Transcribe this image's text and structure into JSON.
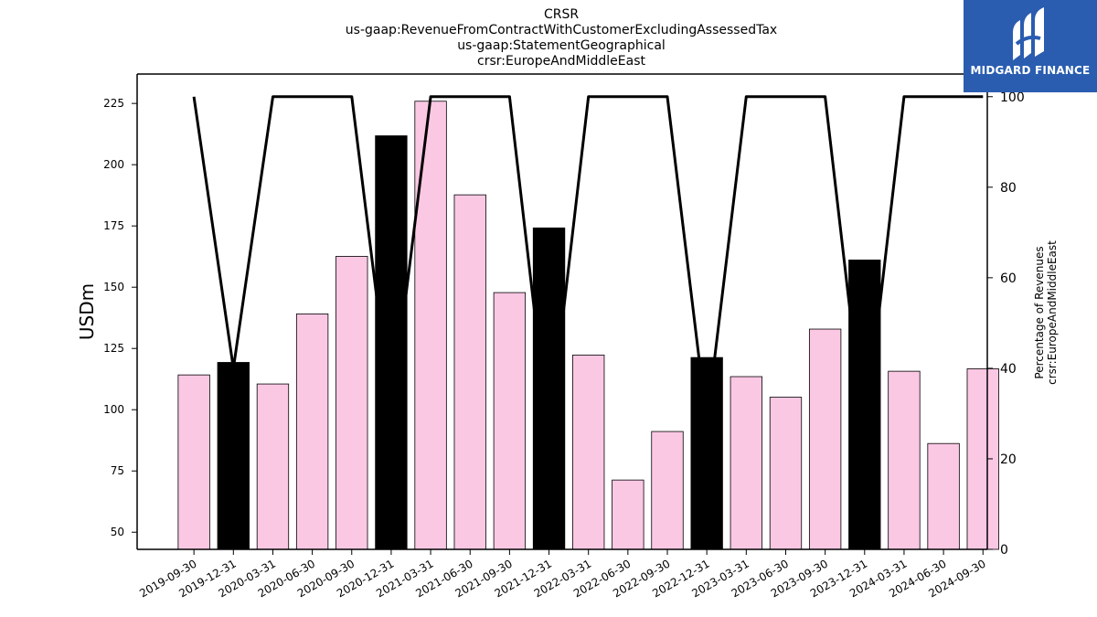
{
  "logo": {
    "text": "MIDGARD FINANCE",
    "bg_color": "#2a5db0"
  },
  "chart_data": {
    "type": "bar",
    "title_lines": [
      "CRSR",
      "us-gaap:RevenueFromContractWithCustomerExcludingAssessedTax",
      "us-gaap:StatementGeographical",
      "crsr:EuropeAndMiddleEast"
    ],
    "ylabel": "USDm",
    "y2label_lines": [
      "Percentage of Revenues",
      "crsr:EuropeAndMiddleEast"
    ],
    "ylim": [
      43,
      237
    ],
    "yticks": [
      50,
      75,
      100,
      125,
      150,
      175,
      200,
      225
    ],
    "y2lim": [
      0,
      105
    ],
    "y2ticks": [
      0,
      20,
      40,
      60,
      80,
      100
    ],
    "categories": [
      "2019-09-30",
      "2019-12-31",
      "2020-03-31",
      "2020-06-30",
      "2020-09-30",
      "2020-12-31",
      "2021-03-31",
      "2021-06-30",
      "2021-09-30",
      "2021-12-31",
      "2022-03-31",
      "2022-06-30",
      "2022-09-30",
      "2022-12-31",
      "2023-03-31",
      "2023-06-30",
      "2023-09-30",
      "2023-12-31",
      "2024-03-31",
      "2024-06-30",
      "2024-09-30"
    ],
    "series": [
      {
        "type": "bar",
        "values": [
          114.2,
          119.3,
          110.5,
          139.1,
          162.6,
          211.8,
          225.9,
          187.7,
          147.8,
          174.2,
          122.3,
          71.3,
          91.1,
          121.3,
          113.5,
          105.1,
          132.9,
          161.1,
          115.7,
          86.2,
          116.7
        ],
        "colors": [
          "#fbc8e4",
          "#000000",
          "#fbc8e4",
          "#fbc8e4",
          "#fbc8e4",
          "#000000",
          "#fbc8e4",
          "#fbc8e4",
          "#fbc8e4",
          "#000000",
          "#fbc8e4",
          "#fbc8e4",
          "#fbc8e4",
          "#000000",
          "#fbc8e4",
          "#fbc8e4",
          "#fbc8e4",
          "#000000",
          "#fbc8e4",
          "#fbc8e4",
          "#fbc8e4"
        ]
      },
      {
        "type": "line",
        "axis": "right",
        "color": "#000000",
        "values": [
          100,
          40,
          100,
          100,
          100,
          30,
          100,
          100,
          100,
          25,
          100,
          100,
          100,
          28,
          100,
          100,
          100,
          25,
          100,
          100,
          100
        ]
      }
    ],
    "grid": false
  }
}
